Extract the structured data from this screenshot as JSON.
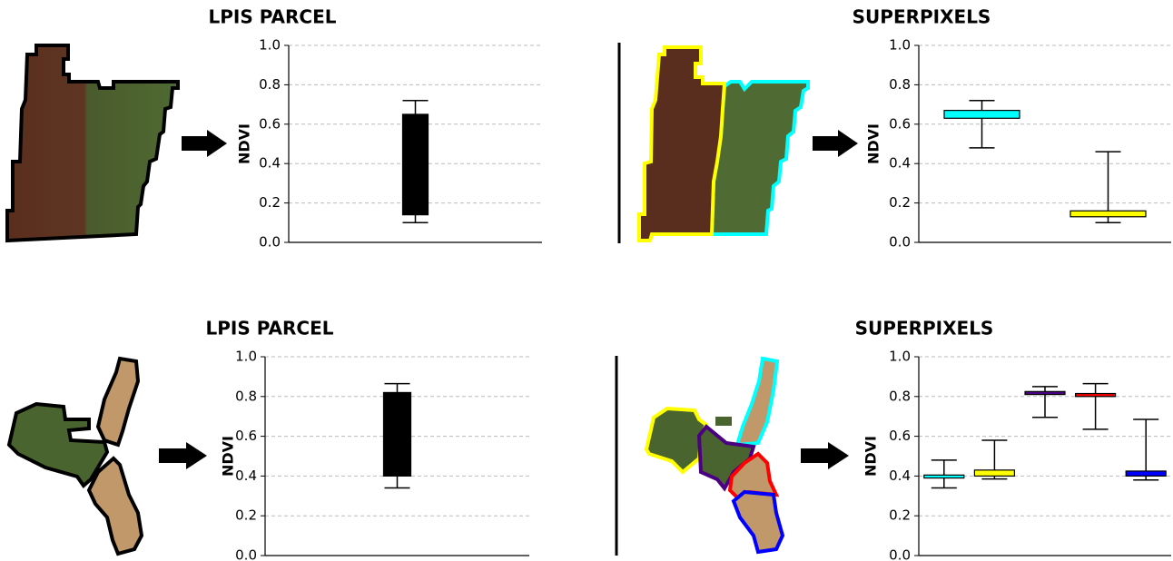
{
  "chart_data": [
    {
      "type": "box",
      "title": "LPIS PARCEL",
      "ylabel": "NDVI",
      "ylim": [
        0,
        1
      ],
      "grid": true,
      "yticks": [
        {
          "value": 0,
          "label": "0.0"
        },
        {
          "value": 0.2,
          "label": "0.2"
        },
        {
          "value": 0.4,
          "label": "0.4"
        },
        {
          "value": 0.6,
          "label": "0.6"
        },
        {
          "value": 0.8,
          "label": "0.8"
        },
        {
          "value": 1,
          "label": "1.0"
        }
      ],
      "boxes": [
        {
          "color": "#000000",
          "low": 0.1,
          "q1": 0.14,
          "q3": 0.65,
          "high": 0.72
        }
      ]
    },
    {
      "type": "box",
      "title": "SUPERPIXELS",
      "ylabel": "NDVI",
      "ylim": [
        0,
        1
      ],
      "grid": true,
      "yticks": [
        {
          "value": 0,
          "label": "0.0"
        },
        {
          "value": 0.2,
          "label": "0.2"
        },
        {
          "value": 0.4,
          "label": "0.4"
        },
        {
          "value": 0.6,
          "label": "0.6"
        },
        {
          "value": 0.8,
          "label": "0.8"
        },
        {
          "value": 1,
          "label": "1.0"
        }
      ],
      "boxes": [
        {
          "color": "#00ffff",
          "low": 0.48,
          "q1": 0.63,
          "q3": 0.67,
          "high": 0.72
        },
        {
          "color": "#ffff00",
          "low": 0.1,
          "q1": 0.13,
          "q3": 0.16,
          "high": 0.46
        }
      ]
    },
    {
      "type": "box",
      "title": "LPIS PARCEL",
      "ylabel": "NDVI",
      "ylim": [
        0,
        1
      ],
      "grid": true,
      "yticks": [
        {
          "value": 0,
          "label": "0.0"
        },
        {
          "value": 0.2,
          "label": "0.2"
        },
        {
          "value": 0.4,
          "label": "0.4"
        },
        {
          "value": 0.6,
          "label": "0.6"
        },
        {
          "value": 0.8,
          "label": "0.8"
        },
        {
          "value": 1,
          "label": "1.0"
        }
      ],
      "boxes": [
        {
          "color": "#000000",
          "low": 0.34,
          "q1": 0.4,
          "q3": 0.82,
          "high": 0.865
        }
      ]
    },
    {
      "type": "box",
      "title": "SUPERPIXELS",
      "ylabel": "NDVI",
      "ylim": [
        0,
        1
      ],
      "grid": true,
      "yticks": [
        {
          "value": 0,
          "label": "0.0"
        },
        {
          "value": 0.2,
          "label": "0.2"
        },
        {
          "value": 0.4,
          "label": "0.4"
        },
        {
          "value": 0.6,
          "label": "0.6"
        },
        {
          "value": 0.8,
          "label": "0.8"
        },
        {
          "value": 1,
          "label": "1.0"
        }
      ],
      "boxes": [
        {
          "color": "#00ffff",
          "low": 0.34,
          "q1": 0.39,
          "q3": 0.405,
          "high": 0.48
        },
        {
          "color": "#ffff00",
          "low": 0.385,
          "q1": 0.4,
          "q3": 0.43,
          "high": 0.58
        },
        {
          "color": "#4b0082",
          "low": 0.695,
          "q1": 0.81,
          "q3": 0.825,
          "high": 0.85
        },
        {
          "color": "#ff0000",
          "low": 0.635,
          "q1": 0.8,
          "q3": 0.815,
          "high": 0.865
        },
        {
          "color": "#0000ff",
          "low": 0.38,
          "q1": 0.4,
          "q3": 0.425,
          "high": 0.685
        }
      ]
    }
  ]
}
